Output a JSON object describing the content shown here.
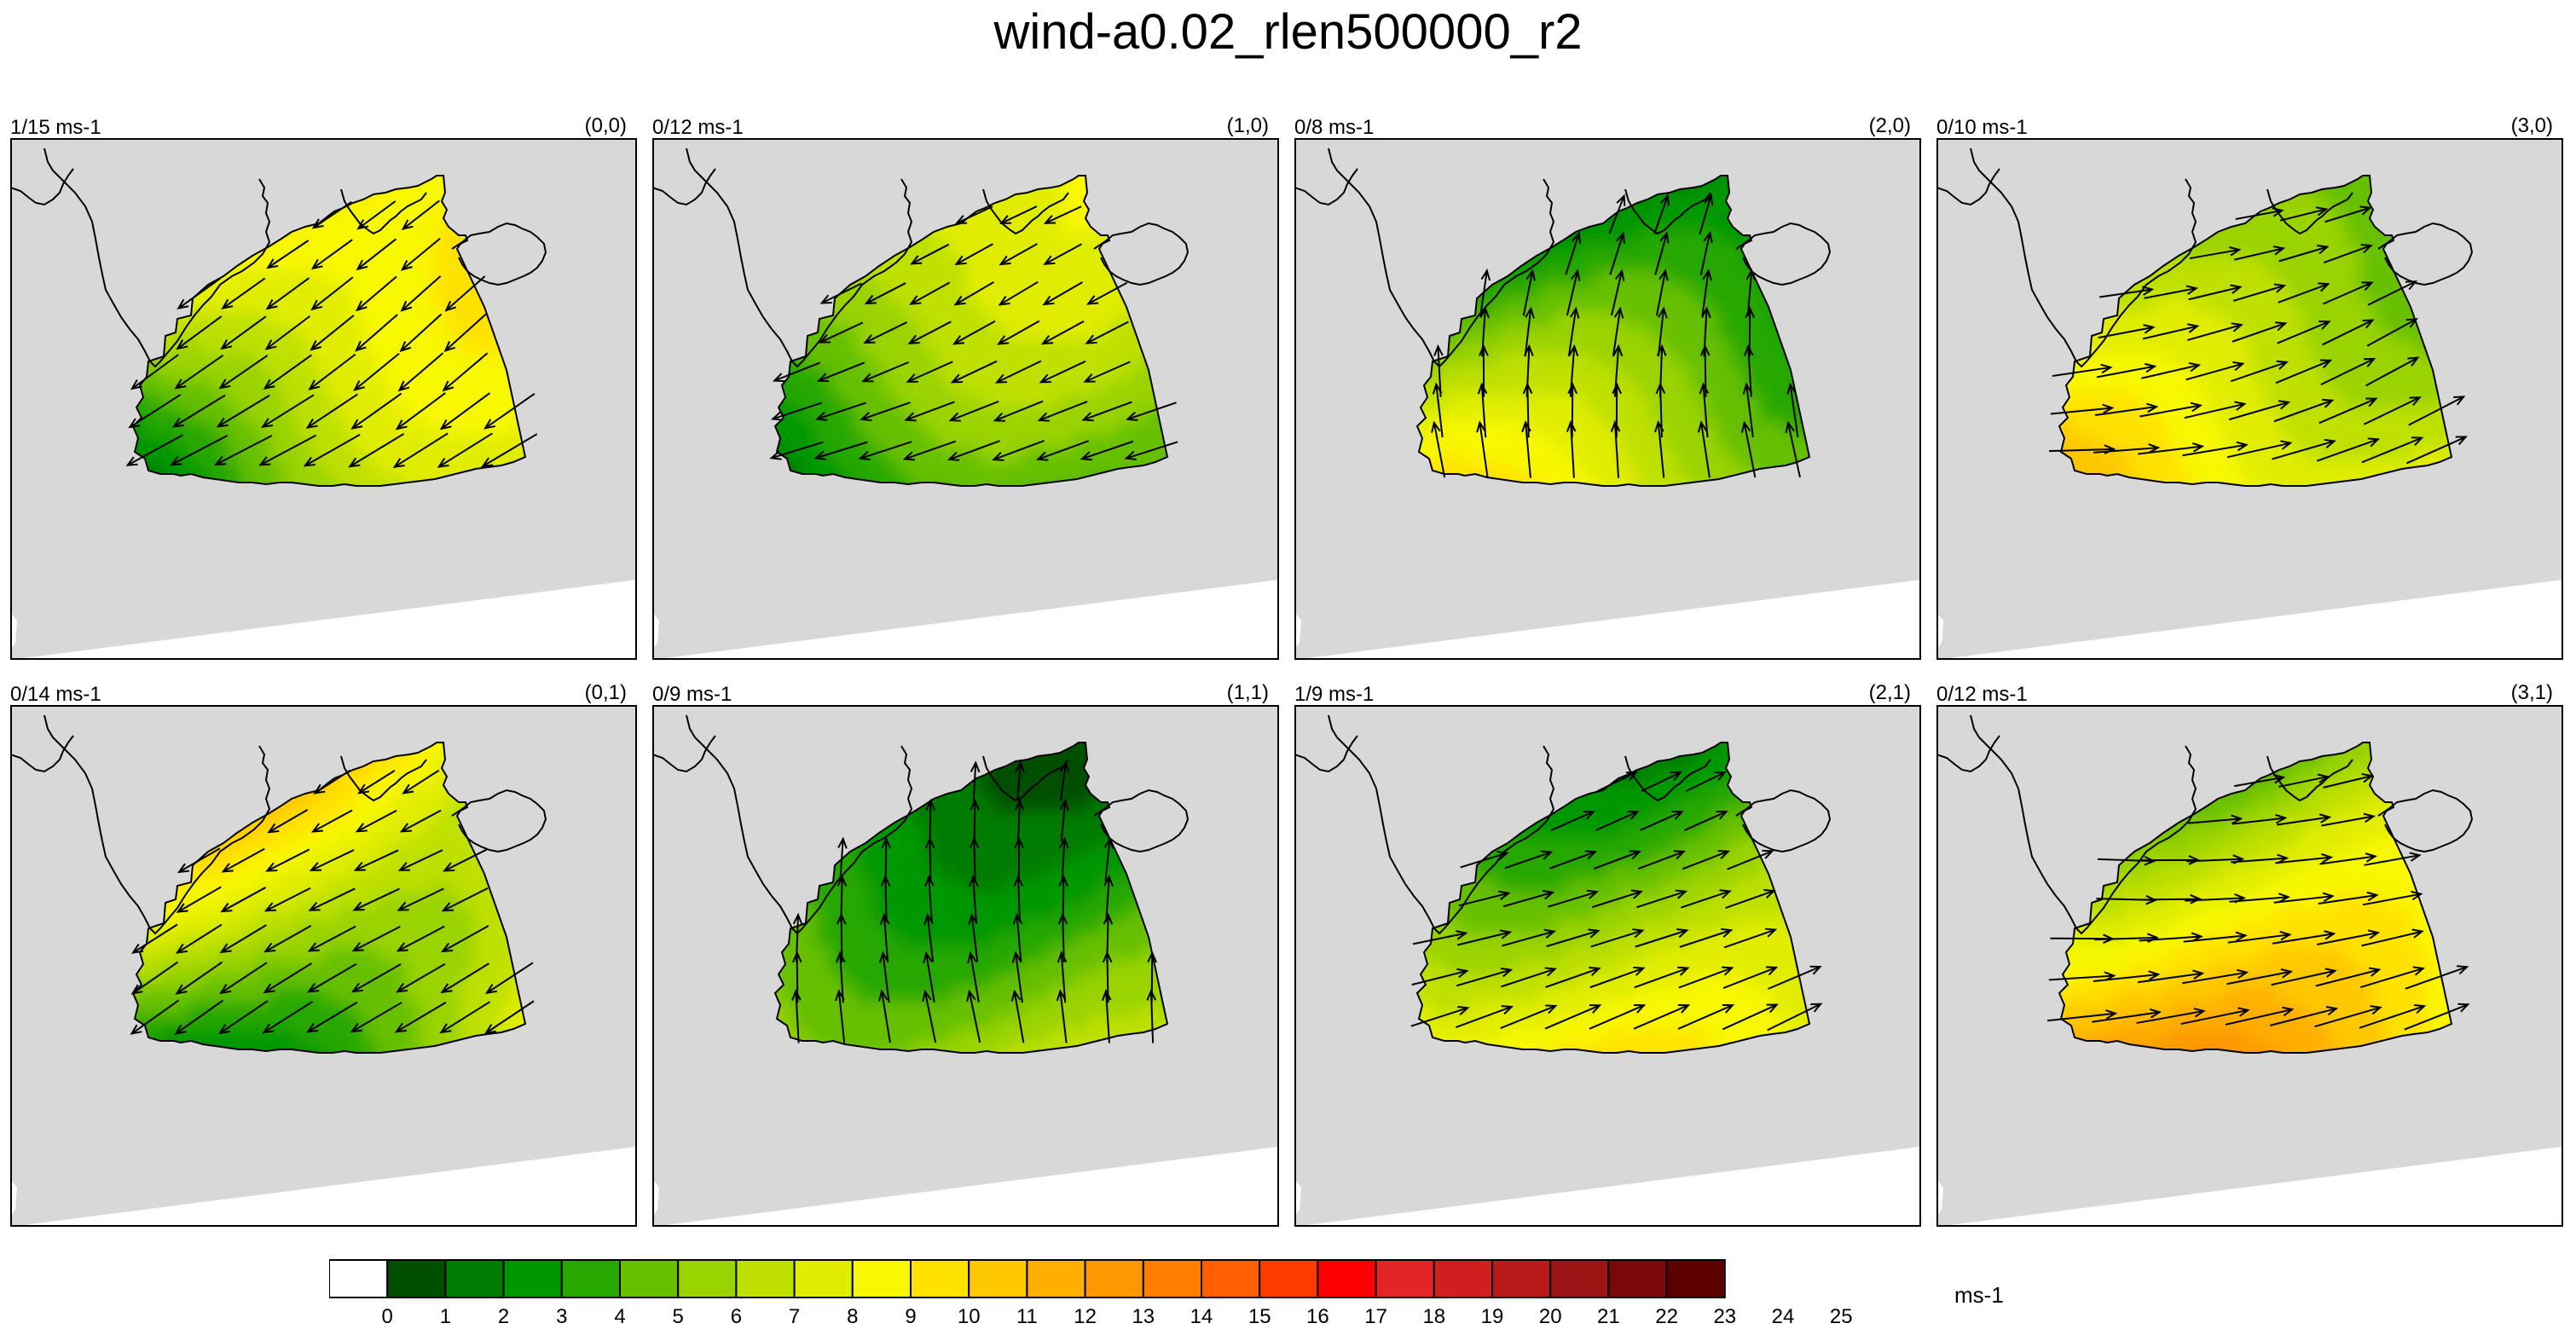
{
  "title": "wind-a0.02_rlen500000_r2",
  "colors": {
    "land": "#d8d8d8",
    "sea": "#ffffff",
    "scale": [
      "#ffffff",
      "#004f00",
      "#007c00",
      "#009800",
      "#27a800",
      "#66c000",
      "#99d300",
      "#bfe000",
      "#e1ed00",
      "#f8f800",
      "#ffe200",
      "#ffc800",
      "#ffaf00",
      "#ff9800",
      "#ff7d00",
      "#ff5f00",
      "#ff3c00",
      "#ff0000",
      "#e32525",
      "#d01f1f",
      "#b81a1a",
      "#9d1414",
      "#7a0808",
      "#5e0000"
    ]
  },
  "panels": [
    {
      "id": "(0,0)",
      "range": "1/15 ms-1",
      "base": 7.5,
      "f": {
        "a": -0.48,
        "b": 0.04,
        "c": 0.4
      },
      "v": {
        "u0": -0.72,
        "u1": -0.1,
        "v0": 0.5,
        "v1": 0.0,
        "len": 70
      }
    },
    {
      "id": "(1,0)",
      "range": "0/12 ms-1",
      "base": 5.5,
      "f": {
        "a": -0.4,
        "b": 0.04,
        "c": 0.3
      },
      "v": {
        "u0": -0.8,
        "u1": 0.0,
        "v0": 0.35,
        "v1": 0.0,
        "len": 60
      }
    },
    {
      "id": "(2,0)",
      "range": "0/8 ms-1",
      "base": 4.3,
      "f": {
        "a": 0.55,
        "b": -0.1,
        "c": -0.12
      },
      "v": {
        "u0": 0.05,
        "u1": -0.25,
        "v0": -0.95,
        "v1": 0.0,
        "len": 62
      }
    },
    {
      "id": "(3,0)",
      "range": "0/10 ms-1",
      "base": 6.5,
      "f": {
        "a": 0.45,
        "b": -0.02,
        "c": -0.15
      },
      "v": {
        "u0": 0.92,
        "u1": 0.0,
        "v0": -0.25,
        "v1": -0.2,
        "len": 72
      }
    },
    {
      "id": "(0,1)",
      "range": "0/14 ms-1",
      "base": 7.0,
      "f": {
        "a": -0.45,
        "b": 0.02,
        "c": 0.35
      },
      "v": {
        "u0": -0.75,
        "u1": -0.1,
        "v0": 0.45,
        "v1": 0.0,
        "len": 64
      }
    },
    {
      "id": "(1,1)",
      "range": "0/9 ms-1",
      "base": 3.8,
      "f": {
        "a": 0.35,
        "b": -0.05,
        "c": -0.08
      },
      "v": {
        "u0": 0.0,
        "u1": -0.15,
        "v0": -0.95,
        "v1": 0.0,
        "len": 58
      }
    },
    {
      "id": "(2,1)",
      "range": "1/9 ms-1",
      "base": 5.8,
      "f": {
        "a": 0.45,
        "b": -0.05,
        "c": -0.15
      },
      "v": {
        "u0": 0.9,
        "u1": 0.0,
        "v0": -0.35,
        "v1": -0.1,
        "len": 66
      }
    },
    {
      "id": "(3,1)",
      "range": "0/12 ms-1",
      "base": 8.0,
      "f": {
        "a": 0.5,
        "b": -0.02,
        "c": -0.18
      },
      "v": {
        "u0": 0.94,
        "u1": 0.0,
        "v0": -0.15,
        "v1": -0.15,
        "len": 76
      }
    }
  ],
  "colorbar": {
    "labels": [
      "0",
      "1",
      "2",
      "3",
      "4",
      "5",
      "6",
      "7",
      "8",
      "9",
      "10",
      "11",
      "12",
      "13",
      "14",
      "15",
      "16",
      "17",
      "18",
      "19",
      "20",
      "21",
      "22",
      "23",
      "24",
      "25"
    ],
    "unit": "ms-1"
  }
}
